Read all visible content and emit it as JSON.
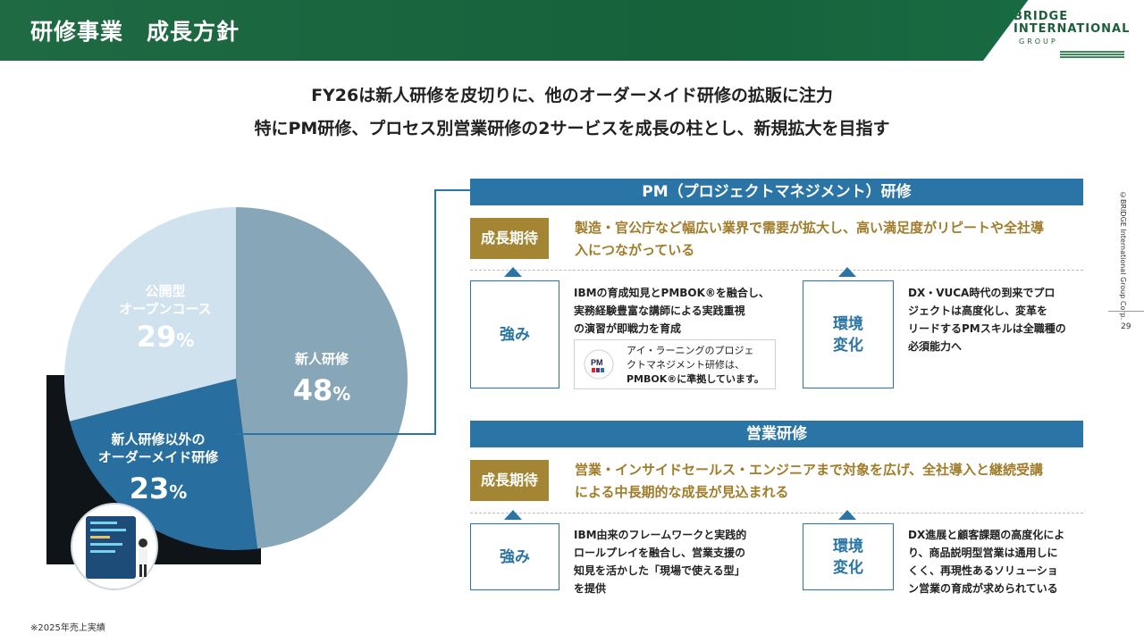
{
  "header": {
    "title": "研修事業　成長方針"
  },
  "logo": {
    "line1": "BRIDGE",
    "line2": "INTERNATIONAL",
    "line3": "GROUP"
  },
  "side_note": "©BRIDGE International Group Corp.",
  "page_number": "29",
  "headline": {
    "line1": "FY26は新人研修を皮切りに、他のオーダーメイド研修の拡販に注力",
    "line2": "特にPM研修、プロセス別営業研修の2サービスを成長の柱とし、新規拡大を目指す"
  },
  "chart_data": {
    "type": "pie",
    "slices": [
      {
        "label": "新人研修",
        "value": 48,
        "display": "48",
        "unit": "%",
        "color": "#87a7b8"
      },
      {
        "label": "新人研修以外のオーダーメイド研修",
        "label_line1": "新人研修以外の",
        "label_line2": "オーダーメイド研修",
        "value": 23,
        "display": "23",
        "unit": "%",
        "color": "#2a74a6"
      },
      {
        "label": "公開型オープンコース",
        "label_line1": "公開型",
        "label_line2": "オープンコース",
        "value": 29,
        "display": "29",
        "unit": "%",
        "color": "#cfe2ee"
      }
    ]
  },
  "footnote": "※2025年売上実績",
  "pm_section": {
    "title": "PM（プロジェクトマネジメント）研修",
    "growth_label": "成長期待",
    "growth_text_line1": "製造・官公庁など幅広い業界で需要が拡大し、高い満足度がリピートや全社導",
    "growth_text_line2": "入につながっている",
    "strength_label": "強み",
    "strength_desc_line1": "IBMの育成知見とPMBOK®を融合し、",
    "strength_desc_line2": "実務経験豊富な講師による実践重視",
    "strength_desc_line3": "の演習が即戦力を育成",
    "env_label_line1": "環境",
    "env_label_line2": "変化",
    "env_desc_line1": "DX・VUCA時代の到来でプロ",
    "env_desc_line2": "ジェクトは高度化し、変革を",
    "env_desc_line3": "リードするPMスキルは全職種の",
    "env_desc_line4": "必須能力へ",
    "cert_line1": "アイ・ラーニングのプロジェ",
    "cert_line2": "クトマネジメント研修は、",
    "cert_line3": "PMBOK®に準拠しています。"
  },
  "sales_section": {
    "title": "営業研修",
    "growth_label": "成長期待",
    "growth_text_line1": "営業・インサイドセールス・エンジニアまで対象を広げ、全社導入と継続受講",
    "growth_text_line2": "による中長期的な成長が見込まれる",
    "strength_label": "強み",
    "strength_desc_line1": "IBM由来のフレームワークと実践的",
    "strength_desc_line2": "ロールプレイを融合し、営業支援の",
    "strength_desc_line3": "知見を活かした「現場で使える型」",
    "strength_desc_line4": "を提供",
    "env_label_line1": "環境",
    "env_label_line2": "変化",
    "env_desc_line1": "DX進展と顧客課題の高度化によ",
    "env_desc_line2": "り、商品説明型営業は通用しに",
    "env_desc_line3": "くく、再現性あるソリューショ",
    "env_desc_line4": "ン営業の育成が求められている"
  },
  "colors": {
    "header_green": "#1f6a43",
    "accent_blue": "#2a74a6",
    "gold": "#a38533"
  }
}
